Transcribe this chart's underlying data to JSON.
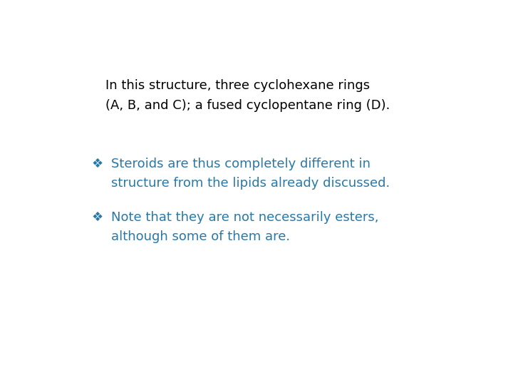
{
  "background_color": "#ffffff",
  "header_line1": "In this structure, three cyclohexane rings",
  "header_line2": "(A, B, and C); a fused cyclopentane ring (D).",
  "header_color": "#000000",
  "header_fontsize": 13,
  "bullet_color": "#2878A8",
  "bullet_fontsize": 13,
  "bullet1_line1": "Steroids are thus completely different in",
  "bullet1_line2": "structure from the lipids already discussed.",
  "bullet2_line1": "Note that they are not necessarily esters,",
  "bullet2_line2": "although some of them are.",
  "bullet_symbol": "❖",
  "fig_width": 7.2,
  "fig_height": 5.4,
  "dpi": 100
}
